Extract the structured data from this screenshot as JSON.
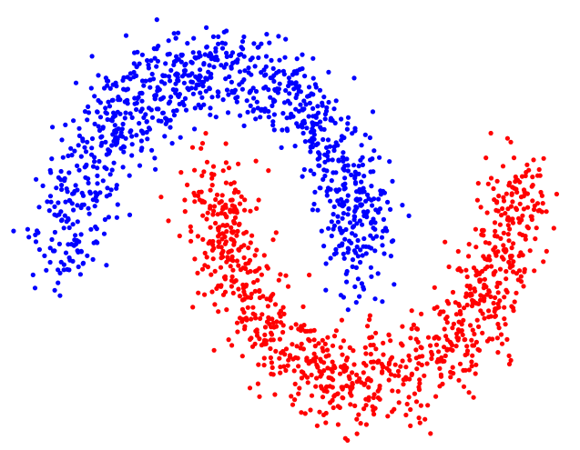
{
  "chart_data": {
    "type": "scatter",
    "title": "",
    "xlabel": "",
    "ylabel": "",
    "xlim": [
      -1.35,
      2.35
    ],
    "ylim": [
      -0.8,
      1.3
    ],
    "grid": false,
    "axes_visible": false,
    "legend": "none",
    "series": [
      {
        "color": "#0000ff",
        "marker": "circle",
        "shape": "upper-moon",
        "arc_center": [
          0.0,
          0.0
        ],
        "arc_radius": 1.0,
        "arc_theta_deg": [
          0,
          180
        ],
        "noise_sd": 0.12,
        "n_points": 1000
      },
      {
        "color": "#ff0000",
        "marker": "circle",
        "shape": "lower-moon",
        "arc_center": [
          1.0,
          0.5
        ],
        "arc_radius": 1.0,
        "arc_theta_deg": [
          180,
          360
        ],
        "noise_sd": 0.12,
        "n_points": 1000
      }
    ]
  }
}
